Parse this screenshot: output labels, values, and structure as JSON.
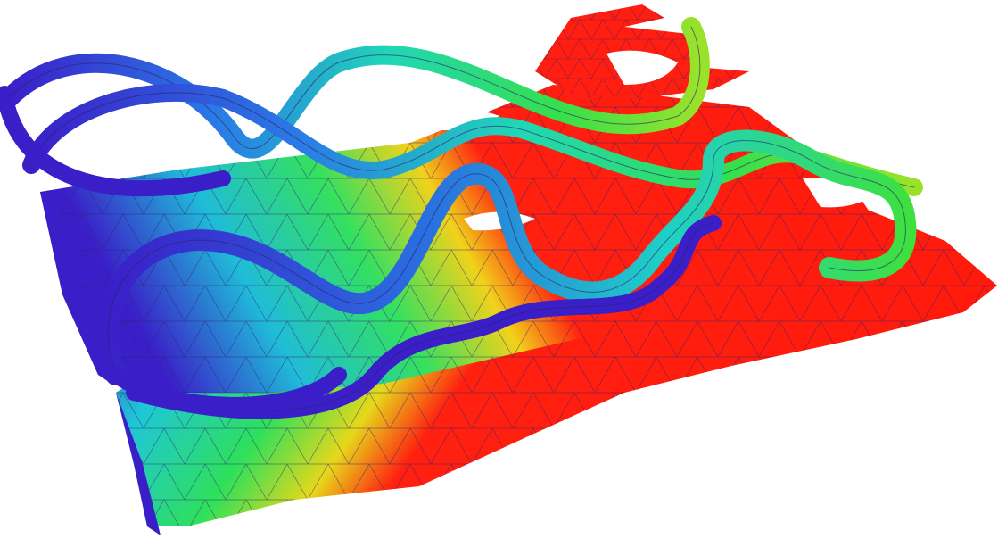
{
  "scene": {
    "background": "#ffffff",
    "mesh_line_color": "#2a1f6e",
    "colormap": [
      "#3a1fc8",
      "#2a6fe0",
      "#19d6c8",
      "#29e05a",
      "#d8e21a",
      "#ff1e10"
    ],
    "layers": [
      "base-sheet",
      "middle-sheet",
      "ribbon-lattice"
    ]
  }
}
